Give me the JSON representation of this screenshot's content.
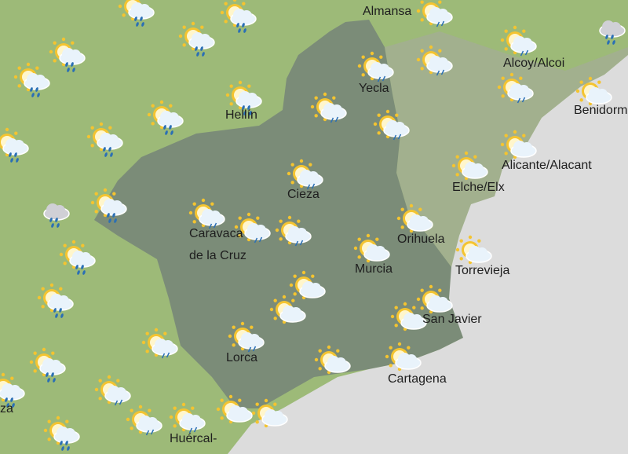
{
  "map": {
    "colors": {
      "land": "#9dba78",
      "region": "#7b8c78",
      "neighbor": "#a2b08e",
      "sea": "#dcdcdc",
      "sun": "#f4c430",
      "cloud": "#e9f3fb",
      "rain": "#2a6fb5"
    },
    "cities": [
      {
        "name": "Almansa"
      },
      {
        "name": "Hellín"
      },
      {
        "name": "Yecla"
      },
      {
        "name": "Alcoy/Alcoi"
      },
      {
        "name": "Benidorm"
      },
      {
        "name": "Cieza"
      },
      {
        "name": "Alicante/Alacant"
      },
      {
        "name": "Elche/Elx"
      },
      {
        "name": "Caravaca"
      },
      {
        "name": "de la Cruz"
      },
      {
        "name": "Orihuela"
      },
      {
        "name": "Murcia"
      },
      {
        "name": "Torrevieja"
      },
      {
        "name": "San Javier"
      },
      {
        "name": "Lorca"
      },
      {
        "name": "Cartagena"
      },
      {
        "name": "Huércal-"
      },
      {
        "name": "za"
      }
    ],
    "weather_icons": {
      "rain": "sun-cloud-rain-icon",
      "light": "sun-cloud-light-rain-icon",
      "partly": "partly-cloudy-icon",
      "cloudrain": "cloud-rain-icon"
    }
  }
}
